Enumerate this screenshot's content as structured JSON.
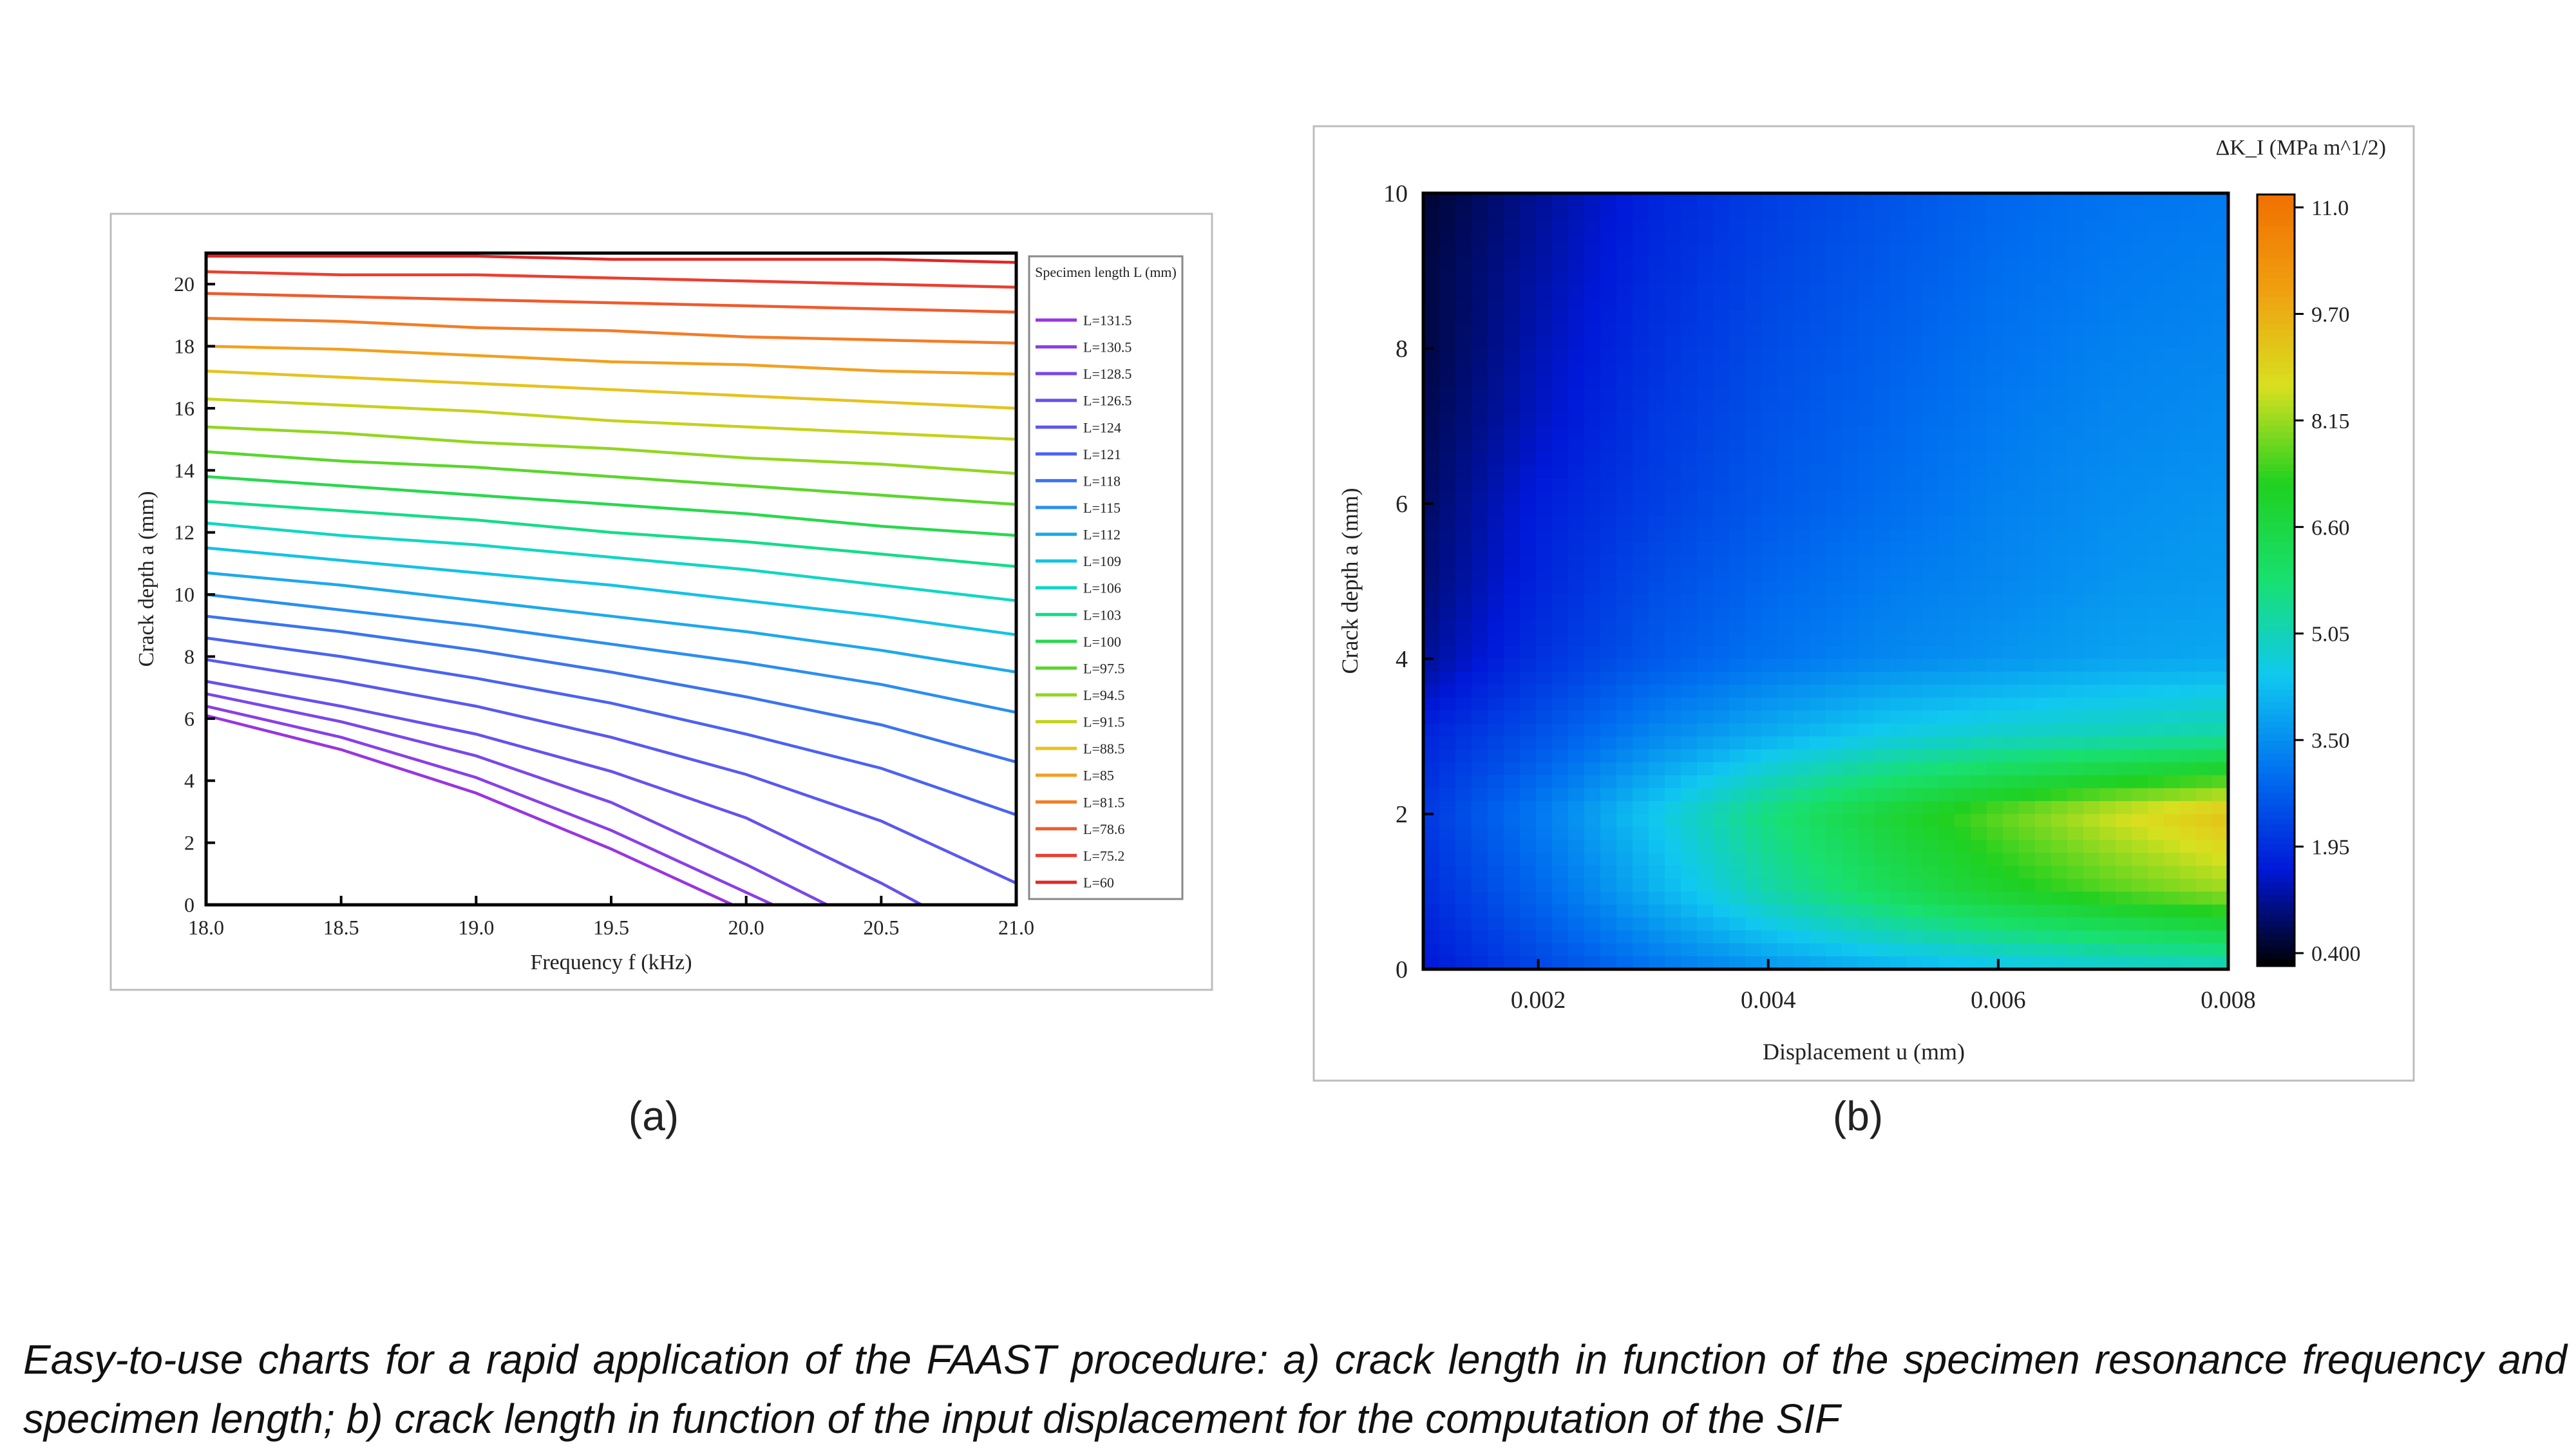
{
  "panel_labels": [
    "(a)",
    "(b)"
  ],
  "caption": "Easy-to-use charts for a rapid application of the FAAST procedure: a) crack length in function of the specimen resonance frequency and specimen length; b) crack length in function of the input displacement for the computation of the SIF",
  "chart_data": [
    {
      "type": "line",
      "xlabel": "Frequency f (kHz)",
      "ylabel": "Crack depth a (mm)",
      "xlim": [
        18.0,
        21.0
      ],
      "ylim": [
        0,
        21
      ],
      "xticks": [
        "18.0",
        "18.5",
        "19.0",
        "19.5",
        "20.0",
        "20.5",
        "21.0"
      ],
      "yticks": [
        "0",
        "2",
        "4",
        "6",
        "8",
        "10",
        "12",
        "14",
        "16",
        "18",
        "20"
      ],
      "legend_title": "Specimen length L (mm)",
      "legend_position": "right",
      "grid": false,
      "series": [
        {
          "name": "L=131.5",
          "color": "#9a34e0",
          "x": [
            18.0,
            18.5,
            19.0,
            19.5,
            19.8,
            19.95
          ],
          "y": [
            6.1,
            5.0,
            3.6,
            1.8,
            0.6,
            0
          ]
        },
        {
          "name": "L=130.5",
          "color": "#8a3fe6",
          "x": [
            18.0,
            18.5,
            19.0,
            19.5,
            19.9,
            20.1
          ],
          "y": [
            6.4,
            5.4,
            4.1,
            2.4,
            0.8,
            0
          ]
        },
        {
          "name": "L=128.5",
          "color": "#7a47ea",
          "x": [
            18.0,
            18.5,
            19.0,
            19.5,
            20.0,
            20.3
          ],
          "y": [
            6.8,
            5.9,
            4.8,
            3.3,
            1.3,
            0
          ]
        },
        {
          "name": "L=126.5",
          "color": "#6a4fee",
          "x": [
            18.0,
            18.5,
            19.0,
            19.5,
            20.0,
            20.5,
            20.65
          ],
          "y": [
            7.2,
            6.4,
            5.5,
            4.3,
            2.8,
            0.7,
            0
          ]
        },
        {
          "name": "L=124",
          "color": "#5a58f0",
          "x": [
            18.0,
            18.5,
            19.0,
            19.5,
            20.0,
            20.5,
            21.0
          ],
          "y": [
            7.9,
            7.2,
            6.4,
            5.4,
            4.2,
            2.7,
            0.7
          ]
        },
        {
          "name": "L=121",
          "color": "#4a62f2",
          "x": [
            18.0,
            18.5,
            19.0,
            19.5,
            20.0,
            20.5,
            21.0
          ],
          "y": [
            8.6,
            8.0,
            7.3,
            6.5,
            5.5,
            4.4,
            2.9
          ]
        },
        {
          "name": "L=118",
          "color": "#3a74f0",
          "x": [
            18.0,
            18.5,
            19.0,
            19.5,
            20.0,
            20.5,
            21.0
          ],
          "y": [
            9.3,
            8.8,
            8.2,
            7.5,
            6.7,
            5.8,
            4.6
          ]
        },
        {
          "name": "L=115",
          "color": "#2a8ef0",
          "x": [
            18.0,
            18.5,
            19.0,
            19.5,
            20.0,
            20.5,
            21.0
          ],
          "y": [
            10.0,
            9.5,
            9.0,
            8.4,
            7.8,
            7.1,
            6.2
          ]
        },
        {
          "name": "L=112",
          "color": "#1ea8ec",
          "x": [
            18.0,
            18.5,
            19.0,
            19.5,
            20.0,
            20.5,
            21.0
          ],
          "y": [
            10.7,
            10.3,
            9.8,
            9.3,
            8.8,
            8.2,
            7.5
          ]
        },
        {
          "name": "L=109",
          "color": "#14c2e6",
          "x": [
            18.0,
            18.5,
            19.0,
            19.5,
            20.0,
            20.5,
            21.0
          ],
          "y": [
            11.5,
            11.1,
            10.7,
            10.3,
            9.8,
            9.3,
            8.7
          ]
        },
        {
          "name": "L=106",
          "color": "#10d6c4",
          "x": [
            18.0,
            18.5,
            19.0,
            19.5,
            20.0,
            20.5,
            21.0
          ],
          "y": [
            12.3,
            11.9,
            11.6,
            11.2,
            10.8,
            10.3,
            9.8
          ]
        },
        {
          "name": "L=103",
          "color": "#14dc8a",
          "x": [
            18.0,
            18.5,
            19.0,
            19.5,
            20.0,
            20.5,
            21.0
          ],
          "y": [
            13.0,
            12.7,
            12.4,
            12.0,
            11.7,
            11.3,
            10.9
          ]
        },
        {
          "name": "L=100",
          "color": "#28d84e",
          "x": [
            18.0,
            18.5,
            19.0,
            19.5,
            20.0,
            20.5,
            21.0
          ],
          "y": [
            13.8,
            13.5,
            13.2,
            12.9,
            12.6,
            12.2,
            11.9
          ]
        },
        {
          "name": "L=97.5",
          "color": "#5ad62c",
          "x": [
            18.0,
            18.5,
            19.0,
            19.5,
            20.0,
            20.5,
            21.0
          ],
          "y": [
            14.6,
            14.3,
            14.1,
            13.8,
            13.5,
            13.2,
            12.9
          ]
        },
        {
          "name": "L=94.5",
          "color": "#92d620",
          "x": [
            18.0,
            18.5,
            19.0,
            19.5,
            20.0,
            20.5,
            21.0
          ],
          "y": [
            15.4,
            15.2,
            14.9,
            14.7,
            14.4,
            14.2,
            13.9
          ]
        },
        {
          "name": "L=91.5",
          "color": "#c4d21c",
          "x": [
            18.0,
            18.5,
            19.0,
            19.5,
            20.0,
            20.5,
            21.0
          ],
          "y": [
            16.3,
            16.1,
            15.9,
            15.6,
            15.4,
            15.2,
            15.0
          ]
        },
        {
          "name": "L=88.5",
          "color": "#e6c21e",
          "x": [
            18.0,
            18.5,
            19.0,
            19.5,
            20.0,
            20.5,
            21.0
          ],
          "y": [
            17.2,
            17.0,
            16.8,
            16.6,
            16.4,
            16.2,
            16.0
          ]
        },
        {
          "name": "L=85",
          "color": "#f2a020",
          "x": [
            18.0,
            18.5,
            19.0,
            19.5,
            20.0,
            20.5,
            21.0
          ],
          "y": [
            18.0,
            17.9,
            17.7,
            17.5,
            17.4,
            17.2,
            17.1
          ]
        },
        {
          "name": "L=81.5",
          "color": "#f47c26",
          "x": [
            18.0,
            18.5,
            19.0,
            19.5,
            20.0,
            20.5,
            21.0
          ],
          "y": [
            18.9,
            18.8,
            18.6,
            18.5,
            18.3,
            18.2,
            18.1
          ]
        },
        {
          "name": "L=78.6",
          "color": "#f05a2c",
          "x": [
            18.0,
            18.5,
            19.0,
            19.5,
            20.0,
            20.5,
            21.0
          ],
          "y": [
            19.7,
            19.6,
            19.5,
            19.4,
            19.3,
            19.2,
            19.1
          ]
        },
        {
          "name": "L=75.2",
          "color": "#ec3e30",
          "x": [
            18.0,
            18.5,
            19.0,
            19.5,
            20.0,
            20.5,
            21.0
          ],
          "y": [
            20.4,
            20.3,
            20.3,
            20.2,
            20.1,
            20.0,
            19.9
          ]
        },
        {
          "name": "L=60",
          "color": "#e02828",
          "x": [
            18.0,
            18.5,
            19.0,
            19.5,
            20.0,
            20.5,
            21.0
          ],
          "y": [
            20.9,
            20.9,
            20.9,
            20.8,
            20.8,
            20.8,
            20.7
          ]
        }
      ]
    },
    {
      "type": "heatmap",
      "xlabel": "Displacement u (mm)",
      "ylabel": "Crack depth a (mm)",
      "xlim": [
        0.001,
        0.008
      ],
      "ylim": [
        0,
        10
      ],
      "xticks": [
        "0.002",
        "0.004",
        "0.006",
        "0.008"
      ],
      "yticks": [
        "0",
        "2",
        "4",
        "6",
        "8",
        "10"
      ],
      "colorbar_label": "ΔK_I (MPa m^1/2)",
      "colorbar_ticks": [
        "0.400",
        "1.95",
        "3.50",
        "5.05",
        "6.60",
        "8.15",
        "9.70",
        "11.0"
      ],
      "colorbar_range": [
        0.4,
        11.0
      ],
      "colorscale": [
        "#000000",
        "#0018d8",
        "#0070f0",
        "#10c8f0",
        "#18e070",
        "#20d020",
        "#d8e020",
        "#f0a010",
        "#f07000"
      ],
      "x": [
        0.001,
        0.002,
        0.003,
        0.004,
        0.005,
        0.006,
        0.007,
        0.008
      ],
      "y": [
        0,
        1,
        2,
        3,
        4,
        5,
        6,
        7,
        8,
        9,
        10
      ],
      "z": [
        [
          1.7,
          2.4,
          3.1,
          3.6,
          4.0,
          4.3,
          4.6,
          4.8
        ],
        [
          2.0,
          2.9,
          4.0,
          5.1,
          6.0,
          6.8,
          7.4,
          7.9
        ],
        [
          2.2,
          3.2,
          4.4,
          5.6,
          6.6,
          7.5,
          8.3,
          9.0
        ],
        [
          1.9,
          2.6,
          3.4,
          4.0,
          4.5,
          4.8,
          5.0,
          5.2
        ],
        [
          1.3,
          2.1,
          2.7,
          3.1,
          3.4,
          3.6,
          3.8,
          3.9
        ],
        [
          1.1,
          1.9,
          2.5,
          2.9,
          3.2,
          3.4,
          3.6,
          3.7
        ],
        [
          1.0,
          1.8,
          2.3,
          2.7,
          3.0,
          3.3,
          3.5,
          3.6
        ],
        [
          0.9,
          1.6,
          2.2,
          2.6,
          2.9,
          3.2,
          3.4,
          3.5
        ],
        [
          0.8,
          1.5,
          2.1,
          2.5,
          2.8,
          3.1,
          3.3,
          3.4
        ],
        [
          0.8,
          1.4,
          2.0,
          2.4,
          2.7,
          3.0,
          3.2,
          3.3
        ],
        [
          0.7,
          1.3,
          1.9,
          2.3,
          2.6,
          2.9,
          3.1,
          3.2
        ]
      ]
    }
  ]
}
